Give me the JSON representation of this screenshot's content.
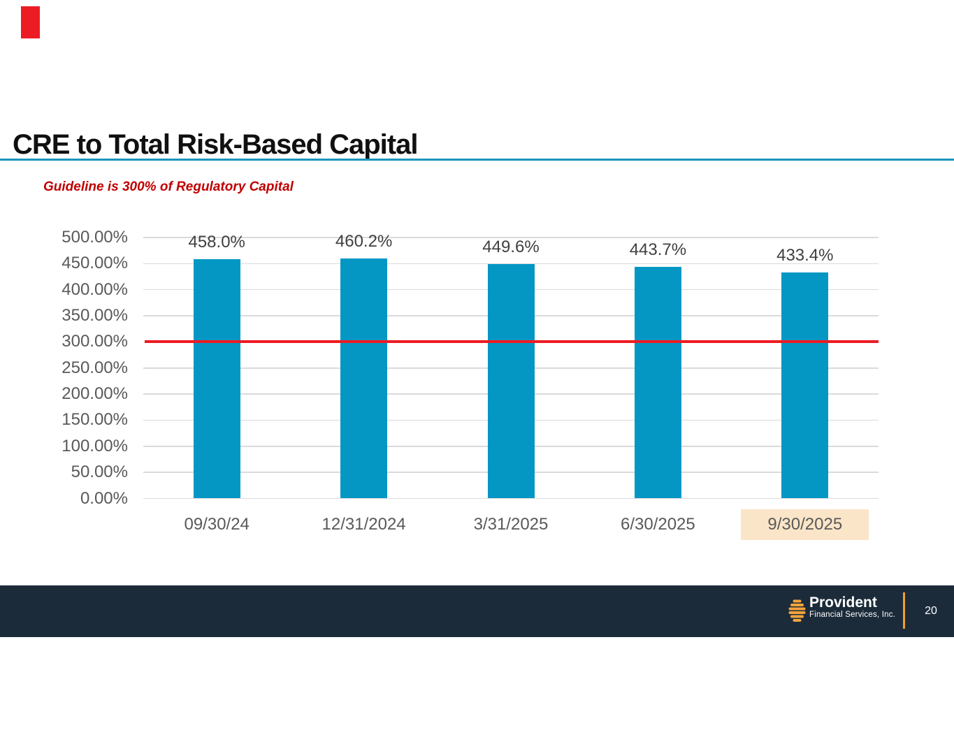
{
  "slide": {
    "title": "CRE to Total Risk-Based Capital",
    "guideline_note": "Guideline is 300% of Regulatory Capital"
  },
  "colors": {
    "bar": "#0597c4",
    "reference_line": "#ec1c24",
    "title_underline": "#1a96be",
    "guideline_text": "#c00000",
    "axis_label": "#595959",
    "data_label": "#404040",
    "gridline": "#dadada",
    "highlight_bg": "#fbe5c8",
    "footer_bg": "#1c2b3a",
    "logo_orange": "#f0a028",
    "marker_red": "#ec1c24"
  },
  "chart_data": {
    "type": "bar",
    "title": "",
    "xlabel": "",
    "ylabel": "",
    "categories": [
      "09/30/24",
      "12/31/2024",
      "3/31/2025",
      "6/30/2025",
      "9/30/2025"
    ],
    "values": [
      458.0,
      460.2,
      449.6,
      443.7,
      433.4
    ],
    "data_labels": [
      "458.0%",
      "460.2%",
      "449.6%",
      "443.7%",
      "433.4%"
    ],
    "y_ticks": [
      "500.00%",
      "450.00%",
      "400.00%",
      "350.00%",
      "300.00%",
      "250.00%",
      "200.00%",
      "150.00%",
      "100.00%",
      "50.00%",
      "0.00%"
    ],
    "ylim": [
      0,
      500
    ],
    "grid": true,
    "legend": "none",
    "reference_line": {
      "value": 300,
      "meaning": "Guideline is 300% of Regulatory Capital"
    },
    "highlighted_category": "9/30/2025"
  },
  "footer": {
    "logo_name": "Provident",
    "logo_subtitle": "Financial Services, Inc.",
    "page_number": "20"
  }
}
